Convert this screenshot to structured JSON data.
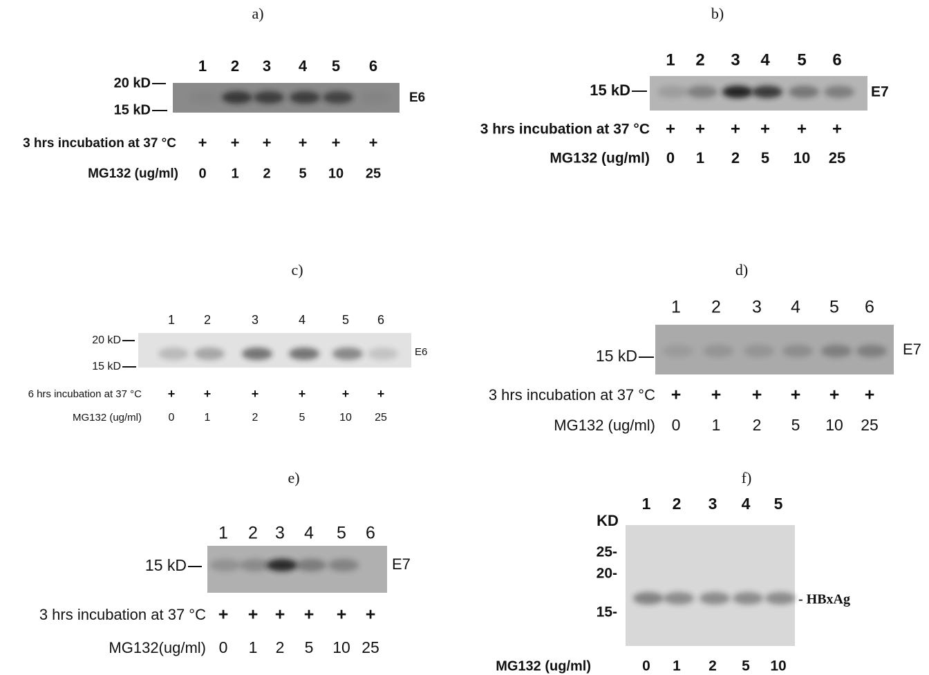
{
  "panels": [
    {
      "label": "a)",
      "lanes": [
        "1",
        "2",
        "3",
        "4",
        "5",
        "6"
      ],
      "markers": [
        "20 kD",
        "15 kD"
      ],
      "protein": "E6",
      "incubation": "3 hrs incubation at 37 °C",
      "plus": [
        "+",
        "+",
        "+",
        "+",
        "+",
        "+"
      ],
      "treatment": "MG132 (ug/ml)",
      "doses": [
        "0",
        "1",
        "2",
        "5",
        "10",
        "25"
      ]
    },
    {
      "label": "b)",
      "lanes": [
        "1",
        "2",
        "3",
        "4",
        "5",
        "6"
      ],
      "markers": [
        "15 kD"
      ],
      "protein": "E7",
      "incubation": "3 hrs incubation at 37 °C",
      "plus": [
        "+",
        "+",
        "+",
        "+",
        "+",
        "+"
      ],
      "treatment": "MG132 (ug/ml)",
      "doses": [
        "0",
        "1",
        "2",
        "5",
        "10",
        "25"
      ]
    },
    {
      "label": "c)",
      "lanes": [
        "1",
        "2",
        "3",
        "4",
        "5",
        "6"
      ],
      "markers": [
        "20 kD",
        "15 kD"
      ],
      "protein": "E6",
      "incubation": "6 hrs incubation at 37 °C",
      "plus": [
        "+",
        "+",
        "+",
        "+",
        "+",
        "+"
      ],
      "treatment": "MG132 (ug/ml)",
      "doses": [
        "0",
        "1",
        "2",
        "5",
        "10",
        "25"
      ]
    },
    {
      "label": "d)",
      "lanes": [
        "1",
        "2",
        "3",
        "4",
        "5",
        "6"
      ],
      "markers": [
        "15 kD"
      ],
      "protein": "E7",
      "incubation": "3 hrs incubation at 37 °C",
      "plus": [
        "+",
        "+",
        "+",
        "+",
        "+",
        "+"
      ],
      "treatment": "MG132 (ug/ml)",
      "doses": [
        "0",
        "1",
        "2",
        "5",
        "10",
        "25"
      ]
    },
    {
      "label": "e)",
      "lanes": [
        "1",
        "2",
        "3",
        "4",
        "5",
        "6"
      ],
      "markers": [
        "15 kD"
      ],
      "protein": "E7",
      "incubation": "3 hrs incubation at 37 °C",
      "plus": [
        "+",
        "+",
        "+",
        "+",
        "+",
        "+"
      ],
      "treatment": "MG132(ug/ml)",
      "doses": [
        "0",
        "1",
        "2",
        "5",
        "10",
        "25"
      ]
    },
    {
      "label": "f)",
      "unit": "KD",
      "lanes": [
        "1",
        "2",
        "3",
        "4",
        "5"
      ],
      "markers": [
        "25-",
        "20-",
        "15-"
      ],
      "protein": "- HBxAg",
      "treatment": "MG132 (ug/ml)",
      "doses": [
        "0",
        "1",
        "2",
        "5",
        "10"
      ]
    }
  ]
}
